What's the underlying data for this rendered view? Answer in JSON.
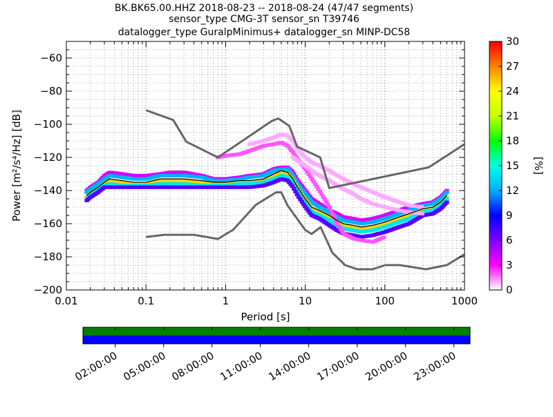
{
  "chart_data": {
    "type": "heatmap",
    "title_lines": [
      "BK.BK65.00.HHZ   2018-08-23 -- 2018-08-24  (47/47 segments)",
      "sensor_type CMG-3T sensor_sn T39746",
      "datalogger_type GuralpMinimus+ datalogger_sn MINP-DC58"
    ],
    "xlabel": "Period [s]",
    "ylabel": "Power [m²/s⁴/Hz] [dB]",
    "xscale": "log",
    "xlim": [
      0.01,
      1000
    ],
    "ylim": [
      -200,
      -50
    ],
    "x_ticks": [
      0.01,
      0.1,
      1,
      10,
      100,
      1000
    ],
    "x_tick_labels": [
      "0.01",
      "0.1",
      "1",
      "10",
      "100",
      "1000"
    ],
    "y_ticks": [
      -200,
      -180,
      -160,
      -140,
      -120,
      -100,
      -80,
      -60
    ],
    "y_tick_labels": [
      "−200",
      "−180",
      "−160",
      "−140",
      "−120",
      "−100",
      "−80",
      "−60"
    ],
    "grid": true,
    "colorbar": {
      "label": "[%]",
      "range": [
        0,
        30
      ],
      "ticks": [
        0,
        3,
        6,
        9,
        12,
        15,
        18,
        21,
        24,
        27,
        30
      ],
      "tick_labels": [
        "0",
        "3",
        "6",
        "9",
        "12",
        "15",
        "18",
        "21",
        "24",
        "27",
        "30"
      ],
      "colors": [
        "#ffffff",
        "#ff00ff",
        "#8000ff",
        "#0000ff",
        "#00b0ff",
        "#00ffe0",
        "#00ff00",
        "#c8ff00",
        "#ffff00",
        "#ff8000",
        "#ff0000"
      ]
    },
    "noise_models": {
      "color": "#666666",
      "nhnm": {
        "x": [
          0.1,
          0.22,
          0.32,
          0.8,
          3.8,
          4.6,
          6.3,
          7.9,
          15.4,
          20,
          354.8,
          1000
        ],
        "y": [
          -91.5,
          -97.4,
          -110.5,
          -120,
          -98,
          -96.5,
          -101,
          -113.5,
          -120,
          -138.5,
          -126,
          -112
        ]
      },
      "nlnm": {
        "x": [
          0.1,
          0.17,
          0.4,
          0.8,
          1.24,
          2.4,
          4.3,
          5,
          6,
          10,
          12,
          15.6,
          21.9,
          31.6,
          45,
          70,
          101,
          154,
          328,
          600,
          1000
        ],
        "y": [
          -168,
          -166.7,
          -166.7,
          -169.2,
          -163.7,
          -148.6,
          -141.1,
          -141.1,
          -149,
          -163.8,
          -166.2,
          -162.1,
          -177.5,
          -185,
          -187.5,
          -187.5,
          -185,
          -185,
          -187.5,
          -185,
          -178.5
        ]
      }
    },
    "series": [
      {
        "role": "mode",
        "color": "#000000",
        "x": [
          0.018,
          0.02,
          0.025,
          0.03,
          0.035,
          0.05,
          0.07,
          0.1,
          0.15,
          0.2,
          0.3,
          0.5,
          0.7,
          1,
          1.5,
          2,
          3,
          4,
          5,
          6,
          7,
          8,
          10,
          12,
          15,
          20,
          25,
          30,
          40,
          50,
          70,
          100,
          150,
          200,
          300,
          400,
          500,
          600
        ],
        "y": [
          -143,
          -141,
          -138,
          -135,
          -133,
          -134,
          -135,
          -135,
          -133,
          -133,
          -133,
          -134,
          -135,
          -135,
          -134,
          -134,
          -133,
          -130,
          -128,
          -129,
          -133,
          -138,
          -145,
          -150,
          -152,
          -155,
          -158,
          -160,
          -161,
          -162,
          -161,
          -159,
          -156,
          -154,
          -151,
          -150,
          -147,
          -143
        ]
      }
    ],
    "density_rows": [
      {
        "x": [
          0.018,
          0.02,
          0.025,
          0.03,
          0.035,
          0.05,
          0.07,
          0.1,
          0.15,
          0.2,
          0.3,
          0.5,
          0.7,
          1,
          1.5,
          2,
          3,
          4,
          5,
          6,
          7,
          8,
          10,
          12,
          15,
          20,
          25,
          30,
          40,
          50,
          70,
          100,
          150,
          200,
          300,
          400,
          500,
          600
        ],
        "y": [
          -140,
          -138,
          -135,
          -131,
          -129,
          -130,
          -131,
          -131,
          -130,
          -129,
          -129,
          -131,
          -133,
          -133,
          -132,
          -131,
          -130,
          -127,
          -126,
          -126,
          -129,
          -134,
          -140,
          -145,
          -148,
          -152,
          -154,
          -156,
          -157,
          -158,
          -157,
          -155,
          -152,
          -150,
          -148,
          -147,
          -144,
          -140
        ],
        "pct": 4
      },
      {
        "x": [
          0.018,
          0.02,
          0.025,
          0.03,
          0.035,
          0.05,
          0.07,
          0.1,
          0.15,
          0.2,
          0.3,
          0.5,
          0.7,
          1,
          1.5,
          2,
          3,
          4,
          5,
          6,
          7,
          8,
          10,
          12,
          15,
          20,
          25,
          30,
          40,
          50,
          70,
          100,
          150,
          200,
          300,
          400,
          500,
          600
        ],
        "y": [
          -141,
          -139,
          -136,
          -133,
          -131,
          -132,
          -133,
          -133,
          -131,
          -131,
          -131,
          -132,
          -134,
          -134,
          -133,
          -132,
          -131,
          -128,
          -127,
          -127,
          -131,
          -136,
          -142,
          -147,
          -150,
          -153,
          -156,
          -158,
          -159,
          -160,
          -159,
          -157,
          -154,
          -152,
          -149,
          -148,
          -145,
          -141
        ],
        "pct": 12
      },
      {
        "x": [
          0.018,
          0.02,
          0.025,
          0.03,
          0.035,
          0.05,
          0.07,
          0.1,
          0.15,
          0.2,
          0.3,
          0.5,
          0.7,
          1,
          1.5,
          2,
          3,
          4,
          5,
          6,
          7,
          8,
          10,
          12,
          15,
          20,
          25,
          30,
          40,
          50,
          70,
          100,
          150,
          200,
          300,
          400,
          500,
          600
        ],
        "y": [
          -144,
          -142,
          -139,
          -136,
          -134,
          -135,
          -136,
          -136,
          -134,
          -134,
          -134,
          -135,
          -136,
          -136,
          -135,
          -135,
          -134,
          -131,
          -129,
          -130,
          -134,
          -139,
          -146,
          -151,
          -153,
          -156,
          -159,
          -161,
          -162,
          -163,
          -162,
          -160,
          -157,
          -155,
          -152,
          -151,
          -148,
          -144
        ],
        "pct": 25
      },
      {
        "x": [
          0.018,
          0.02,
          0.025,
          0.03,
          0.035,
          0.05,
          0.07,
          0.1,
          0.15,
          0.2,
          0.3,
          0.5,
          0.7,
          1,
          1.5,
          2,
          3,
          4,
          5,
          6,
          7,
          8,
          10,
          12,
          15,
          20,
          25,
          30,
          40,
          50,
          70,
          100,
          150,
          200,
          300,
          400,
          500,
          600
        ],
        "y": [
          -145,
          -143,
          -140,
          -137,
          -136,
          -137,
          -137,
          -137,
          -136,
          -136,
          -136,
          -137,
          -137,
          -137,
          -136,
          -136,
          -135,
          -133,
          -131,
          -132,
          -136,
          -141,
          -148,
          -153,
          -155,
          -158,
          -161,
          -163,
          -164,
          -165,
          -164,
          -162,
          -159,
          -157,
          -153,
          -152,
          -149,
          -145
        ],
        "pct": 14
      },
      {
        "x": [
          0.018,
          0.02,
          0.025,
          0.03,
          0.035,
          0.05,
          0.07,
          0.1,
          0.15,
          0.2,
          0.3,
          0.5,
          0.7,
          1,
          1.5,
          2,
          3,
          4,
          5,
          6,
          7,
          8,
          10,
          12,
          15,
          20,
          25,
          30,
          40,
          50,
          70,
          100,
          150,
          200,
          300,
          400,
          500,
          600
        ],
        "y": [
          -146,
          -144,
          -141,
          -138,
          -138,
          -138,
          -138,
          -138,
          -138,
          -138,
          -138,
          -138,
          -138,
          -138,
          -138,
          -138,
          -137,
          -135,
          -133,
          -134,
          -138,
          -143,
          -150,
          -155,
          -157,
          -161,
          -164,
          -166,
          -167,
          -168,
          -167,
          -165,
          -162,
          -160,
          -155,
          -154,
          -151,
          -147
        ],
        "pct": 7
      },
      {
        "x": [
          0.8,
          1,
          1.5,
          2,
          3,
          4,
          5,
          6,
          7,
          8,
          10,
          12,
          15,
          20,
          25,
          30,
          40,
          50,
          70,
          100
        ],
        "y": [
          -120,
          -119,
          -118,
          -116,
          -113,
          -112,
          -111,
          -113,
          -117,
          -121,
          -127,
          -133,
          -140,
          -150,
          -160,
          -166,
          -169,
          -170,
          -171,
          -168
        ],
        "pct": 2
      },
      {
        "x": [
          2,
          3,
          4,
          5,
          6,
          7,
          8,
          10,
          12,
          15,
          20,
          25,
          30,
          40,
          50,
          70,
          100,
          150,
          200,
          300
        ],
        "y": [
          -112,
          -110,
          -108,
          -106,
          -107,
          -110,
          -115,
          -120,
          -123,
          -125,
          -128,
          -131,
          -133,
          -136,
          -138,
          -141,
          -144,
          -147,
          -149,
          -150
        ],
        "pct": 1
      },
      {
        "x": [
          7,
          8,
          10,
          12,
          15,
          20,
          25,
          30,
          40,
          50,
          70,
          100,
          150,
          200,
          300
        ],
        "y": [
          -120,
          -122,
          -125,
          -128,
          -131,
          -134,
          -137,
          -139,
          -142,
          -145,
          -148,
          -150,
          -152,
          -153,
          -154
        ],
        "pct": 1
      }
    ],
    "timeline": {
      "tick_labels": [
        "02:00:00",
        "05:00:00",
        "08:00:00",
        "11:00:00",
        "14:00:00",
        "17:00:00",
        "20:00:00",
        "23:00:00"
      ],
      "tick_hours": [
        2,
        5,
        8,
        11,
        14,
        17,
        20,
        23
      ],
      "range_hours": [
        0,
        24
      ],
      "upper_color": "#008000",
      "lower_color": "#0000ff"
    }
  }
}
